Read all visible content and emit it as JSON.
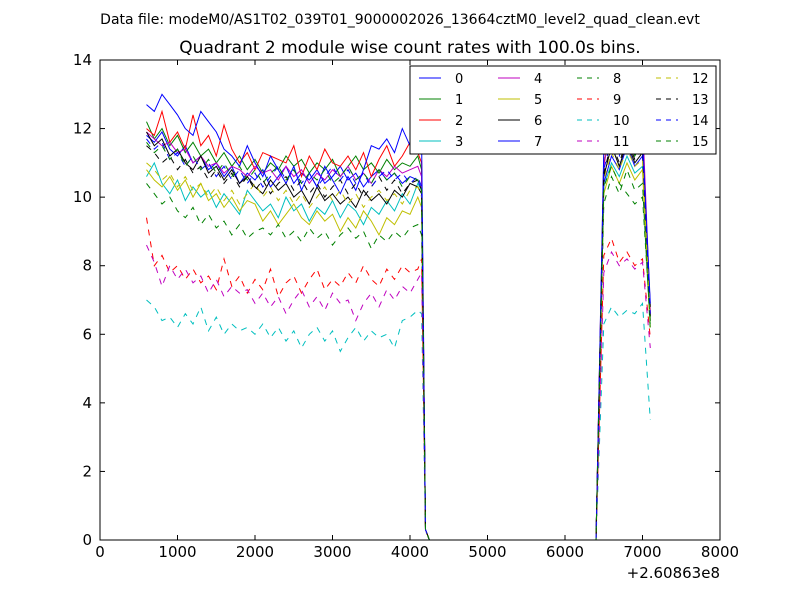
{
  "chart_data": {
    "type": "line",
    "suptitle": "Data file: modeM0/AS1T02_039T01_9000002026_13664cztM0_level2_quad_clean.evt",
    "title": "Quadrant 2 module wise count rates with 100.0s bins.",
    "xlabel": "",
    "ylabel": "",
    "xlim": [
      0,
      8000
    ],
    "ylim": [
      0,
      14
    ],
    "x_offset_label": "+2.60863e8",
    "x_ticks": [
      0,
      1000,
      2000,
      3000,
      4000,
      5000,
      6000,
      7000,
      8000
    ],
    "y_ticks": [
      0,
      2,
      4,
      6,
      8,
      10,
      12,
      14
    ],
    "grid": false,
    "legend_position": "top-right",
    "legend_columns": 4,
    "x": [
      600,
      700,
      800,
      900,
      1000,
      1100,
      1200,
      1300,
      1400,
      1500,
      1600,
      1700,
      1800,
      1900,
      2000,
      2100,
      2200,
      2300,
      2400,
      2500,
      2600,
      2700,
      2800,
      2900,
      3000,
      3100,
      3200,
      3300,
      3400,
      3500,
      3600,
      3700,
      3800,
      3900,
      4000,
      4100,
      4150,
      4200,
      4250,
      6300,
      6400,
      6500,
      6600,
      6700,
      6800,
      6900,
      7000,
      7100
    ],
    "series": [
      {
        "name": "0",
        "color": "#0000ff",
        "dash": "solid",
        "values": [
          11.8,
          11.6,
          11.9,
          11.4,
          11.2,
          11.5,
          11.0,
          11.2,
          10.8,
          11.0,
          10.6,
          10.9,
          10.4,
          10.7,
          10.5,
          10.8,
          10.3,
          10.6,
          10.9,
          10.4,
          10.7,
          10.5,
          10.8,
          10.4,
          10.6,
          10.9,
          10.5,
          10.7,
          10.3,
          10.6,
          10.8,
          10.5,
          10.7,
          10.4,
          10.6,
          10.5,
          10.2,
          0.3,
          0,
          0,
          0,
          10.4,
          11.2,
          10.8,
          11.5,
          10.9,
          11.2,
          6.4
        ]
      },
      {
        "name": "1",
        "color": "#008000",
        "dash": "solid",
        "values": [
          12.2,
          11.7,
          12.0,
          11.5,
          11.8,
          11.3,
          11.6,
          11.2,
          11.4,
          11.0,
          11.3,
          10.9,
          11.2,
          10.8,
          11.1,
          10.7,
          11.0,
          10.8,
          11.2,
          10.9,
          11.1,
          10.7,
          11.0,
          10.8,
          11.1,
          10.6,
          10.9,
          11.2,
          10.8,
          11.0,
          10.7,
          11.1,
          10.8,
          11.0,
          10.9,
          11.2,
          10.8,
          0.3,
          0,
          0,
          0,
          11.0,
          11.9,
          11.3,
          12.0,
          11.2,
          11.6,
          6.5
        ]
      },
      {
        "name": "2",
        "color": "#ff0000",
        "dash": "solid",
        "values": [
          12.0,
          11.8,
          12.5,
          11.6,
          11.9,
          11.4,
          12.4,
          11.5,
          11.8,
          11.2,
          12.1,
          11.4,
          11.0,
          11.3,
          10.8,
          11.3,
          11.2,
          11.1,
          11.0,
          11.5,
          10.6,
          11.2,
          10.8,
          11.4,
          11.0,
          10.9,
          11.2,
          10.8,
          11.3,
          10.6,
          11.1,
          11.5,
          10.9,
          11.2,
          11.6,
          11.3,
          11.0,
          0.3,
          0,
          0,
          0,
          11.2,
          12.3,
          11.8,
          12.2,
          11.6,
          11.8,
          6.6
        ]
      },
      {
        "name": "3",
        "color": "#00bfbf",
        "dash": "solid",
        "values": [
          10.6,
          11.0,
          10.4,
          10.1,
          10.5,
          9.9,
          10.3,
          10.0,
          10.2,
          9.7,
          10.1,
          9.8,
          9.5,
          10.2,
          9.9,
          9.6,
          9.8,
          9.4,
          10.0,
          9.6,
          9.8,
          9.3,
          9.7,
          9.5,
          9.9,
          9.4,
          9.8,
          9.6,
          9.2,
          9.7,
          9.5,
          9.9,
          9.6,
          10.1,
          9.8,
          10.4,
          10.2,
          0.3,
          0,
          0,
          0,
          10.3,
          11.0,
          10.6,
          11.2,
          10.7,
          10.9,
          6.3
        ]
      },
      {
        "name": "4",
        "color": "#bf00bf",
        "dash": "solid",
        "values": [
          11.9,
          11.7,
          11.5,
          11.6,
          11.3,
          11.4,
          11.0,
          11.2,
          10.9,
          11.0,
          10.7,
          10.9,
          10.8,
          10.6,
          10.9,
          10.7,
          10.8,
          10.5,
          10.9,
          10.6,
          10.8,
          10.4,
          10.7,
          10.5,
          10.8,
          10.6,
          10.9,
          10.5,
          10.7,
          10.4,
          10.8,
          10.6,
          10.9,
          10.7,
          10.8,
          10.9,
          10.6,
          0.3,
          0,
          0,
          0,
          10.9,
          12.2,
          11.5,
          12.4,
          11.4,
          12.3,
          6.7
        ]
      },
      {
        "name": "5",
        "color": "#bfbf00",
        "dash": "solid",
        "values": [
          10.8,
          10.5,
          10.3,
          10.6,
          10.2,
          10.5,
          10.0,
          10.4,
          9.9,
          10.1,
          9.7,
          10.0,
          9.6,
          9.9,
          9.8,
          9.3,
          9.6,
          9.2,
          9.5,
          9.8,
          9.4,
          9.2,
          9.6,
          9.3,
          9.5,
          9.0,
          9.4,
          9.1,
          9.6,
          9.3,
          8.9,
          9.4,
          9.2,
          9.6,
          9.5,
          10.0,
          9.7,
          0.3,
          0,
          0,
          0,
          10.1,
          10.9,
          10.4,
          11.0,
          10.5,
          10.8,
          6.2
        ]
      },
      {
        "name": "6",
        "color": "#000000",
        "dash": "solid",
        "values": [
          11.9,
          11.5,
          11.7,
          11.2,
          11.4,
          11.0,
          10.8,
          11.2,
          10.7,
          10.9,
          10.5,
          10.8,
          10.4,
          10.6,
          10.3,
          10.1,
          10.5,
          10.2,
          10.4,
          10.0,
          10.2,
          9.8,
          10.3,
          9.9,
          10.1,
          9.8,
          10.0,
          9.7,
          10.2,
          9.9,
          10.1,
          9.8,
          10.2,
          10.0,
          10.4,
          10.3,
          10.1,
          0.3,
          0,
          0,
          0,
          10.6,
          11.5,
          10.9,
          11.6,
          11.0,
          11.3,
          6.8
        ]
      },
      {
        "name": "7",
        "color": "#0000ff",
        "dash": "solid",
        "values": [
          12.7,
          12.5,
          13.0,
          12.7,
          12.4,
          12.0,
          11.8,
          12.5,
          12.2,
          11.9,
          11.4,
          11.2,
          10.9,
          11.5,
          11.0,
          10.6,
          11.2,
          10.8,
          10.4,
          10.9,
          10.2,
          10.7,
          10.3,
          10.9,
          10.5,
          10.1,
          10.6,
          10.2,
          10.8,
          11.5,
          11.4,
          11.7,
          11.3,
          12.0,
          11.5,
          11.9,
          11.7,
          0.3,
          0,
          0,
          0,
          11.4,
          12.2,
          11.6,
          12.0,
          11.4,
          11.7,
          6.9
        ]
      },
      {
        "name": "8",
        "color": "#008000",
        "dash": "dashed",
        "values": [
          10.4,
          10.1,
          9.8,
          10.0,
          9.6,
          9.4,
          9.7,
          9.2,
          9.5,
          9.1,
          9.3,
          8.9,
          9.2,
          8.8,
          9.0,
          9.1,
          8.9,
          9.2,
          8.8,
          9.0,
          8.7,
          9.1,
          8.8,
          9.0,
          8.6,
          8.9,
          9.1,
          8.8,
          9.0,
          8.5,
          8.9,
          8.7,
          9.0,
          8.8,
          9.1,
          9.2,
          8.9,
          0.3,
          0,
          0,
          0,
          9.8,
          10.6,
          10.1,
          10.8,
          10.2,
          10.4,
          6.1
        ]
      },
      {
        "name": "9",
        "color": "#ff0000",
        "dash": "dashed",
        "values": [
          9.4,
          8.0,
          8.3,
          7.8,
          8.0,
          7.6,
          7.9,
          7.5,
          7.7,
          7.3,
          8.2,
          7.4,
          7.7,
          7.2,
          7.6,
          7.3,
          7.9,
          7.1,
          7.5,
          7.7,
          7.2,
          7.6,
          7.9,
          7.3,
          7.6,
          7.4,
          7.8,
          7.5,
          8.0,
          7.6,
          7.4,
          7.9,
          7.6,
          8.0,
          7.8,
          7.9,
          8.2,
          0.3,
          0,
          0,
          0,
          8.3,
          8.8,
          8.1,
          8.4,
          8.0,
          8.2,
          5.9
        ]
      },
      {
        "name": "10",
        "color": "#00bfbf",
        "dash": "dashed",
        "values": [
          7.0,
          6.8,
          6.4,
          6.5,
          6.2,
          6.6,
          6.3,
          6.8,
          6.1,
          6.5,
          6.0,
          6.3,
          6.1,
          6.2,
          6.0,
          6.3,
          5.9,
          6.2,
          5.8,
          6.1,
          5.6,
          6.0,
          6.2,
          5.8,
          6.1,
          5.5,
          5.9,
          6.2,
          5.8,
          6.1,
          5.9,
          6.0,
          5.6,
          6.4,
          6.5,
          6.7,
          6.6,
          0.3,
          0,
          0,
          0,
          6.3,
          6.8,
          6.5,
          6.7,
          6.6,
          6.9,
          3.5
        ]
      },
      {
        "name": "11",
        "color": "#bf00bf",
        "dash": "dashed",
        "values": [
          8.6,
          8.1,
          7.4,
          8.0,
          7.6,
          7.9,
          7.5,
          7.7,
          7.2,
          7.6,
          7.1,
          7.4,
          7.2,
          7.3,
          6.9,
          7.2,
          6.8,
          7.1,
          6.6,
          7.0,
          7.3,
          6.8,
          7.1,
          6.7,
          7.2,
          6.9,
          7.0,
          6.4,
          6.9,
          7.2,
          6.8,
          7.3,
          7.0,
          7.4,
          7.2,
          7.6,
          7.8,
          0.3,
          0,
          0,
          0,
          7.8,
          8.4,
          8.0,
          8.2,
          7.9,
          8.1,
          5.6
        ]
      },
      {
        "name": "12",
        "color": "#bfbf00",
        "dash": "dashed",
        "values": [
          11.0,
          10.8,
          10.5,
          10.7,
          10.3,
          10.6,
          10.2,
          10.4,
          10.0,
          10.3,
          9.9,
          10.2,
          9.8,
          10.1,
          10.4,
          10.0,
          10.3,
          9.9,
          10.2,
          9.8,
          10.1,
          9.7,
          10.0,
          10.3,
          9.9,
          10.2,
          9.8,
          10.1,
          9.7,
          10.0,
          10.2,
          9.9,
          10.1,
          9.8,
          10.2,
          10.3,
          10.0,
          0.3,
          0,
          0,
          0,
          10.5,
          11.3,
          10.8,
          11.4,
          10.9,
          11.1,
          6.4
        ]
      },
      {
        "name": "13",
        "color": "#000000",
        "dash": "dashed",
        "values": [
          11.5,
          11.3,
          11.0,
          11.2,
          10.8,
          11.1,
          10.7,
          10.9,
          10.5,
          10.8,
          10.4,
          10.7,
          10.3,
          10.6,
          10.2,
          10.5,
          10.1,
          10.4,
          10.6,
          10.2,
          10.5,
          10.1,
          10.4,
          10.0,
          10.3,
          10.5,
          10.1,
          10.4,
          10.0,
          10.3,
          10.6,
          10.2,
          10.5,
          10.1,
          10.4,
          10.5,
          10.2,
          0.3,
          0,
          0,
          0,
          10.7,
          11.6,
          11.0,
          11.7,
          11.1,
          11.4,
          6.5
        ]
      },
      {
        "name": "14",
        "color": "#0000ff",
        "dash": "dashed",
        "values": [
          11.7,
          11.4,
          11.6,
          11.1,
          11.3,
          10.9,
          11.2,
          10.8,
          11.0,
          10.6,
          10.9,
          10.5,
          10.8,
          10.4,
          10.7,
          10.3,
          10.6,
          10.9,
          10.5,
          10.8,
          10.4,
          10.7,
          10.3,
          10.6,
          10.9,
          10.5,
          10.8,
          10.4,
          10.7,
          10.3,
          10.6,
          10.8,
          10.5,
          10.7,
          10.4,
          10.6,
          10.3,
          0.3,
          0,
          0,
          0,
          10.8,
          11.7,
          11.2,
          11.8,
          11.3,
          11.5,
          6.6
        ]
      },
      {
        "name": "15",
        "color": "#008000",
        "dash": "dashed",
        "values": [
          11.6,
          11.3,
          11.5,
          11.1,
          11.4,
          10.9,
          11.2,
          10.8,
          11.1,
          10.7,
          11.0,
          10.6,
          10.9,
          10.5,
          10.8,
          10.4,
          10.7,
          10.9,
          10.5,
          10.8,
          10.4,
          10.7,
          10.5,
          10.8,
          10.4,
          10.6,
          10.9,
          10.5,
          10.7,
          10.4,
          10.8,
          10.5,
          10.7,
          10.3,
          10.6,
          10.5,
          10.2,
          0.3,
          0,
          0,
          0,
          10.3,
          10.9,
          10.4,
          10.1,
          9.8,
          10.0,
          6.3
        ]
      }
    ]
  }
}
